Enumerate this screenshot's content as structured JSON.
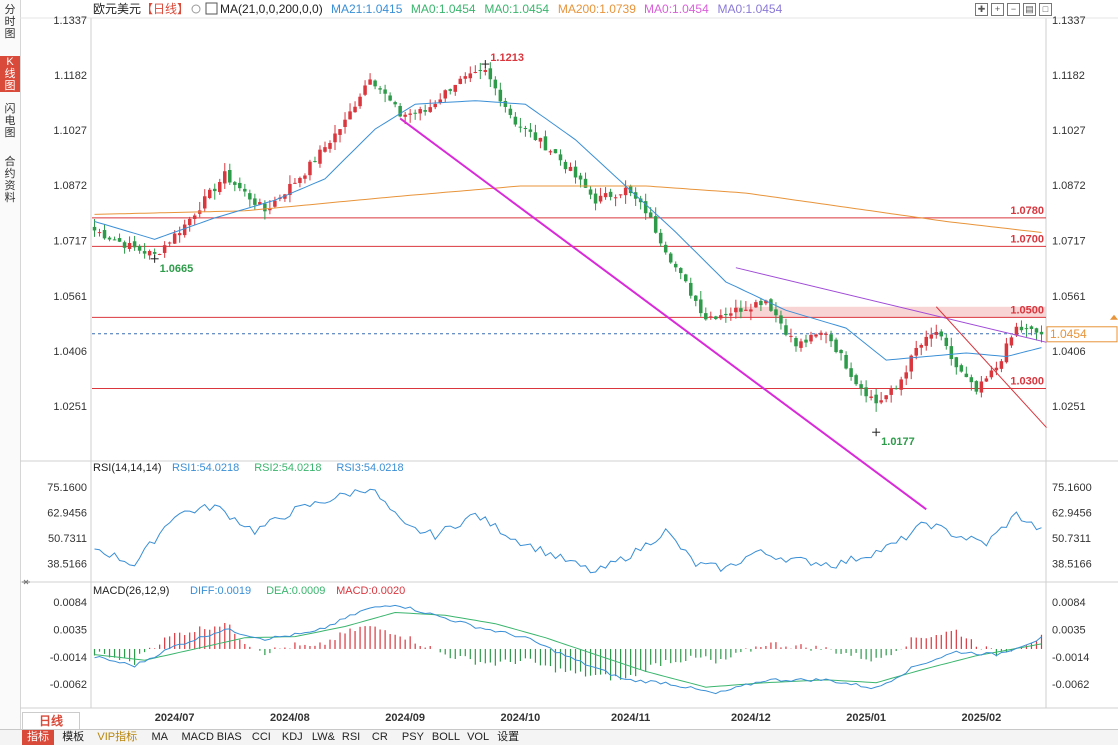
{
  "side_tabs": [
    {
      "label": "分时图",
      "active": false
    },
    {
      "label": "K线图",
      "active": true
    },
    {
      "label": "闪电图",
      "active": false
    },
    {
      "label": "合约资料",
      "active": false
    }
  ],
  "header": {
    "instrument": "欧元美元",
    "period_tag": "【日线】",
    "ma_title": "MA(21,0,0,200,0,0)",
    "ma_values": [
      {
        "label": "MA21:1.0415",
        "color": "#3a8fd6"
      },
      {
        "label": "MA0:1.0454",
        "color": "#3ab56d"
      },
      {
        "label": "MA0:1.0454",
        "color": "#3ab56d"
      },
      {
        "label": "MA200:1.0739",
        "color": "#e8943a"
      },
      {
        "label": "MA0:1.0454",
        "color": "#d95fd9"
      },
      {
        "label": "MA0:1.0454",
        "color": "#8a7ad6"
      }
    ],
    "icons": [
      "crosshair-icon",
      "zoom-in-icon",
      "zoom-out-icon",
      "panel-icon",
      "maximize-icon"
    ]
  },
  "period_selector": "日线",
  "bottom_tabs": [
    {
      "label": "指标",
      "active": true,
      "vip": false
    },
    {
      "label": "模板",
      "active": false,
      "vip": false
    },
    {
      "label": "VIP指标",
      "active": false,
      "vip": true
    },
    {
      "label": "MA",
      "active": false,
      "vip": false
    },
    {
      "label": "MACD",
      "active": false,
      "vip": false
    },
    {
      "label": "BIAS",
      "active": false,
      "vip": false
    },
    {
      "label": "CCI",
      "active": false,
      "vip": false
    },
    {
      "label": "KDJ",
      "active": false,
      "vip": false
    },
    {
      "label": "LW&",
      "active": false,
      "vip": false
    },
    {
      "label": "RSI",
      "active": false,
      "vip": false
    },
    {
      "label": "CR",
      "active": false,
      "vip": false
    },
    {
      "label": "PSY",
      "active": false,
      "vip": false
    },
    {
      "label": "BOLL",
      "active": false,
      "vip": false
    },
    {
      "label": "VOL",
      "active": false,
      "vip": false
    },
    {
      "label": "设置",
      "active": false,
      "vip": false
    }
  ],
  "chart_data": [
    {
      "type": "candlestick",
      "panel": "price",
      "y_ticks": [
        "1.1337",
        "1.1182",
        "1.1027",
        "1.0872",
        "1.0717",
        "1.0561",
        "1.0406",
        "1.0251"
      ],
      "ylim": [
        1.0096,
        1.1337
      ],
      "x_ticks": [
        "2024/07",
        "2024/08",
        "2024/09",
        "2024/10",
        "2024/11",
        "2024/12",
        "2025/01",
        "2025/02"
      ],
      "x_tick_index": [
        16,
        39,
        62,
        85,
        107,
        131,
        154,
        177
      ],
      "bar_count": 190,
      "anchors": [
        {
          "i": 0,
          "v": 1.0745
        },
        {
          "i": 7,
          "v": 1.07
        },
        {
          "i": 12,
          "v": 1.0675
        },
        {
          "i": 18,
          "v": 1.076
        },
        {
          "i": 26,
          "v": 1.09
        },
        {
          "i": 34,
          "v": 1.08
        },
        {
          "i": 42,
          "v": 1.091
        },
        {
          "i": 50,
          "v": 1.105
        },
        {
          "i": 55,
          "v": 1.118
        },
        {
          "i": 61,
          "v": 1.107
        },
        {
          "i": 66,
          "v": 1.108
        },
        {
          "i": 72,
          "v": 1.116
        },
        {
          "i": 78,
          "v": 1.119
        },
        {
          "i": 84,
          "v": 1.105
        },
        {
          "i": 92,
          "v": 1.096
        },
        {
          "i": 100,
          "v": 1.083
        },
        {
          "i": 106,
          "v": 1.086
        },
        {
          "i": 110,
          "v": 1.08
        },
        {
          "i": 116,
          "v": 1.064
        },
        {
          "i": 122,
          "v": 1.05
        },
        {
          "i": 128,
          "v": 1.052
        },
        {
          "i": 134,
          "v": 1.055
        },
        {
          "i": 140,
          "v": 1.042
        },
        {
          "i": 146,
          "v": 1.046
        },
        {
          "i": 152,
          "v": 1.032
        },
        {
          "i": 156,
          "v": 1.026
        },
        {
          "i": 160,
          "v": 1.03
        },
        {
          "i": 164,
          "v": 1.041
        },
        {
          "i": 168,
          "v": 1.046
        },
        {
          "i": 172,
          "v": 1.036
        },
        {
          "i": 176,
          "v": 1.029
        },
        {
          "i": 180,
          "v": 1.036
        },
        {
          "i": 184,
          "v": 1.047
        },
        {
          "i": 189,
          "v": 1.0454
        }
      ],
      "ma21_anchors": [
        {
          "i": 0,
          "v": 1.077
        },
        {
          "i": 12,
          "v": 1.072
        },
        {
          "i": 24,
          "v": 1.078
        },
        {
          "i": 36,
          "v": 1.083
        },
        {
          "i": 46,
          "v": 1.089
        },
        {
          "i": 56,
          "v": 1.103
        },
        {
          "i": 64,
          "v": 1.11
        },
        {
          "i": 76,
          "v": 1.111
        },
        {
          "i": 86,
          "v": 1.11
        },
        {
          "i": 96,
          "v": 1.1
        },
        {
          "i": 106,
          "v": 1.087
        },
        {
          "i": 116,
          "v": 1.074
        },
        {
          "i": 126,
          "v": 1.06
        },
        {
          "i": 138,
          "v": 1.052
        },
        {
          "i": 150,
          "v": 1.047
        },
        {
          "i": 158,
          "v": 1.038
        },
        {
          "i": 166,
          "v": 1.039
        },
        {
          "i": 174,
          "v": 1.04
        },
        {
          "i": 182,
          "v": 1.039
        },
        {
          "i": 189,
          "v": 1.0415
        }
      ],
      "ma200_anchors": [
        {
          "i": 0,
          "v": 1.079
        },
        {
          "i": 30,
          "v": 1.08
        },
        {
          "i": 60,
          "v": 1.084
        },
        {
          "i": 85,
          "v": 1.087
        },
        {
          "i": 110,
          "v": 1.087
        },
        {
          "i": 130,
          "v": 1.085
        },
        {
          "i": 150,
          "v": 1.081
        },
        {
          "i": 170,
          "v": 1.077
        },
        {
          "i": 189,
          "v": 1.0739
        }
      ],
      "levels": [
        {
          "value": 1.078,
          "label": "1.0780"
        },
        {
          "value": 1.07,
          "label": "1.0700"
        },
        {
          "value": 1.05,
          "label": "1.0500"
        },
        {
          "value": 1.03,
          "label": "1.0300"
        }
      ],
      "resistance_zone": [
        1.05,
        1.053
      ],
      "current_price": 1.0454,
      "current_price_label": "1.0454",
      "markers": [
        {
          "i": 12,
          "v": 1.0665,
          "label": "1.0665",
          "color": "#2e9b4a",
          "pos": "below"
        },
        {
          "i": 78,
          "v": 1.1213,
          "label": "1.1213",
          "color": "#d9363e",
          "pos": "above"
        },
        {
          "i": 156,
          "v": 1.0177,
          "label": "1.0177",
          "color": "#2e9b4a",
          "pos": "below"
        }
      ],
      "trendlines": [
        {
          "from": [
            61,
            1.106
          ],
          "to": [
            166,
            0.996
          ],
          "color": "#d92ad9",
          "width": 2
        },
        {
          "from": [
            128,
            1.064
          ],
          "to": [
            190,
            1.043
          ],
          "color": "#9f4ad6",
          "width": 1
        },
        {
          "from": [
            168,
            1.053
          ],
          "to": [
            190,
            1.019
          ],
          "color": "#d9363e",
          "width": 1
        }
      ]
    },
    {
      "type": "line",
      "panel": "rsi",
      "title": "RSI(14,14,14)",
      "series": [
        {
          "name": "RSI1:54.0218",
          "color": "#3a8fd6"
        },
        {
          "name": "RSI2:54.0218",
          "color": "#3ab56d"
        },
        {
          "name": "RSI3:54.0218",
          "color": "#3a8fd6"
        }
      ],
      "y_ticks": [
        "75.1600",
        "62.9456",
        "50.7311",
        "38.5166"
      ],
      "ylim": [
        31,
        79
      ],
      "anchors": [
        {
          "i": 0,
          "v": 46
        },
        {
          "i": 8,
          "v": 38
        },
        {
          "i": 16,
          "v": 62
        },
        {
          "i": 24,
          "v": 66
        },
        {
          "i": 32,
          "v": 54
        },
        {
          "i": 40,
          "v": 64
        },
        {
          "i": 48,
          "v": 70
        },
        {
          "i": 55,
          "v": 75
        },
        {
          "i": 62,
          "v": 56
        },
        {
          "i": 68,
          "v": 52
        },
        {
          "i": 76,
          "v": 62
        },
        {
          "i": 84,
          "v": 50
        },
        {
          "i": 92,
          "v": 42
        },
        {
          "i": 100,
          "v": 34
        },
        {
          "i": 108,
          "v": 44
        },
        {
          "i": 114,
          "v": 54
        },
        {
          "i": 120,
          "v": 38
        },
        {
          "i": 126,
          "v": 36
        },
        {
          "i": 132,
          "v": 44
        },
        {
          "i": 140,
          "v": 40
        },
        {
          "i": 148,
          "v": 38
        },
        {
          "i": 156,
          "v": 44
        },
        {
          "i": 160,
          "v": 48
        },
        {
          "i": 166,
          "v": 58
        },
        {
          "i": 172,
          "v": 52
        },
        {
          "i": 178,
          "v": 48
        },
        {
          "i": 184,
          "v": 62
        },
        {
          "i": 189,
          "v": 54
        }
      ]
    },
    {
      "type": "macd",
      "panel": "macd",
      "title": "MACD(26,12,9)",
      "series": [
        {
          "name": "DIFF:0.0019",
          "color": "#3a8fd6"
        },
        {
          "name": "DEA:0.0009",
          "color": "#3ab56d"
        },
        {
          "name": "MACD:0.0020",
          "color": "#d9363e"
        }
      ],
      "y_ticks": [
        "0.0084",
        "0.0035",
        "-0.0014",
        "-0.0062"
      ],
      "ylim": [
        -0.0098,
        0.0105
      ],
      "diff_anchors": [
        {
          "i": 0,
          "v": -0.0014
        },
        {
          "i": 8,
          "v": -0.003
        },
        {
          "i": 16,
          "v": 0.0005
        },
        {
          "i": 26,
          "v": 0.0035
        },
        {
          "i": 34,
          "v": 0.0018
        },
        {
          "i": 44,
          "v": 0.003
        },
        {
          "i": 54,
          "v": 0.007
        },
        {
          "i": 60,
          "v": 0.008
        },
        {
          "i": 68,
          "v": 0.006
        },
        {
          "i": 76,
          "v": 0.004
        },
        {
          "i": 86,
          "v": 0.002
        },
        {
          "i": 96,
          "v": -0.002
        },
        {
          "i": 106,
          "v": -0.0055
        },
        {
          "i": 114,
          "v": -0.006
        },
        {
          "i": 124,
          "v": -0.008
        },
        {
          "i": 134,
          "v": -0.0055
        },
        {
          "i": 146,
          "v": -0.0055
        },
        {
          "i": 156,
          "v": -0.007
        },
        {
          "i": 164,
          "v": -0.003
        },
        {
          "i": 172,
          "v": -0.0005
        },
        {
          "i": 180,
          "v": -0.001
        },
        {
          "i": 189,
          "v": 0.0019
        }
      ],
      "dea_anchors": [
        {
          "i": 0,
          "v": -0.001
        },
        {
          "i": 10,
          "v": -0.002
        },
        {
          "i": 20,
          "v": 0.0
        },
        {
          "i": 30,
          "v": 0.002
        },
        {
          "i": 40,
          "v": 0.0022
        },
        {
          "i": 50,
          "v": 0.004
        },
        {
          "i": 60,
          "v": 0.0065
        },
        {
          "i": 70,
          "v": 0.006
        },
        {
          "i": 80,
          "v": 0.0045
        },
        {
          "i": 90,
          "v": 0.002
        },
        {
          "i": 100,
          "v": -0.001
        },
        {
          "i": 110,
          "v": -0.004
        },
        {
          "i": 122,
          "v": -0.0068
        },
        {
          "i": 134,
          "v": -0.006
        },
        {
          "i": 146,
          "v": -0.0055
        },
        {
          "i": 156,
          "v": -0.006
        },
        {
          "i": 166,
          "v": -0.0035
        },
        {
          "i": 176,
          "v": -0.0012
        },
        {
          "i": 189,
          "v": 0.0009
        }
      ]
    }
  ]
}
